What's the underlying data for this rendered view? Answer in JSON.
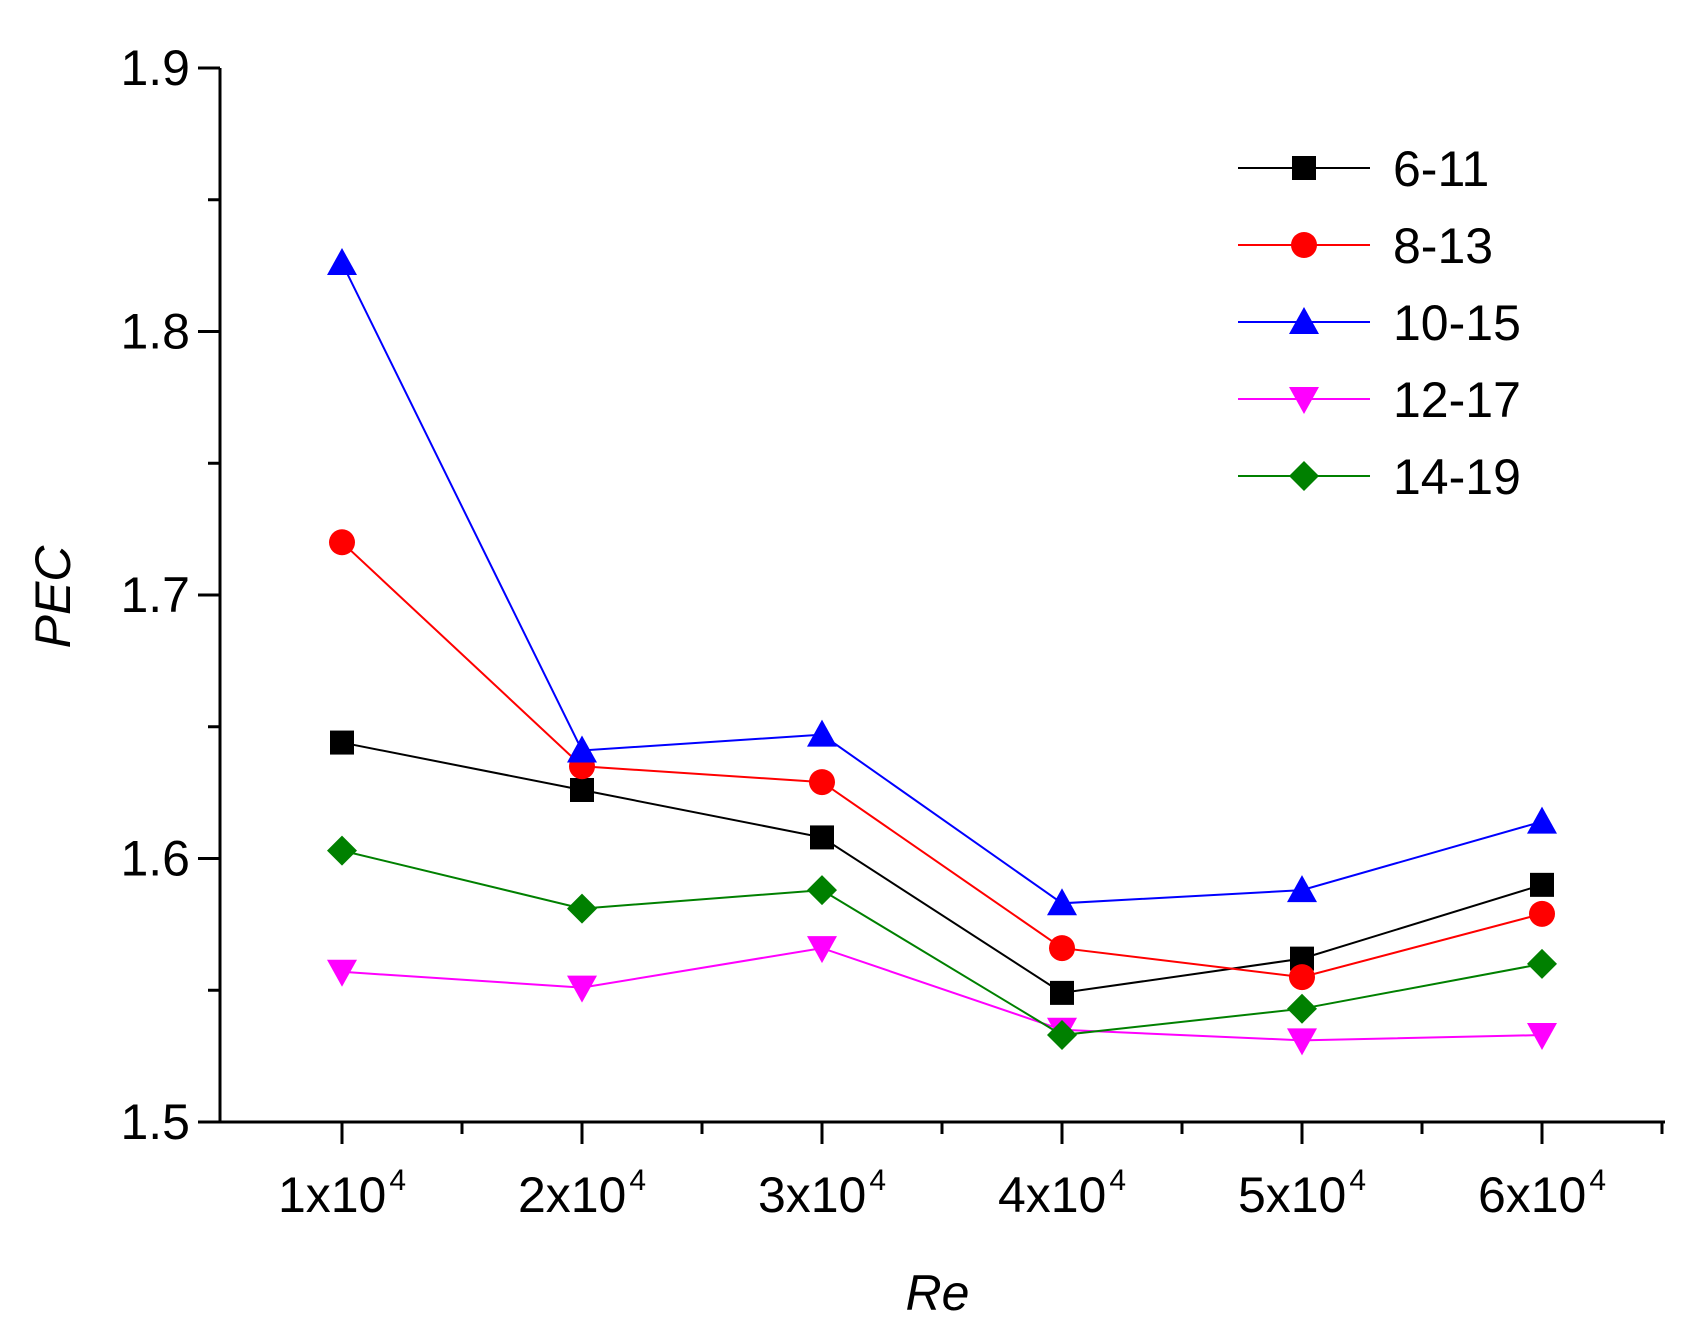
{
  "chart_data": {
    "type": "line",
    "title": "",
    "xlabel": "Re",
    "ylabel": "PEC",
    "x": [
      10000,
      20000,
      30000,
      40000,
      50000,
      60000
    ],
    "x_tick_labels": [
      {
        "base": "1x10",
        "exp": "4"
      },
      {
        "base": "2x10",
        "exp": "4"
      },
      {
        "base": "3x10",
        "exp": "4"
      },
      {
        "base": "4x10",
        "exp": "4"
      },
      {
        "base": "5x10",
        "exp": "4"
      },
      {
        "base": "6x10",
        "exp": "4"
      }
    ],
    "ylim": [
      1.5,
      1.9
    ],
    "y_ticks": [
      "1.5",
      "1.6",
      "1.7",
      "1.8",
      "1.9"
    ],
    "grid": false,
    "legend_position": "top-right",
    "series": [
      {
        "name": "6-11",
        "color": "#000000",
        "marker": "square",
        "values": [
          1.644,
          1.626,
          1.608,
          1.549,
          1.562,
          1.59
        ]
      },
      {
        "name": "8-13",
        "color": "#ff0000",
        "marker": "circle",
        "values": [
          1.72,
          1.635,
          1.629,
          1.566,
          1.555,
          1.579
        ]
      },
      {
        "name": "10-15",
        "color": "#0000ff",
        "marker": "triangle-up",
        "values": [
          1.826,
          1.641,
          1.647,
          1.583,
          1.588,
          1.614
        ]
      },
      {
        "name": "12-17",
        "color": "#ff00ff",
        "marker": "triangle-down",
        "values": [
          1.557,
          1.551,
          1.566,
          1.535,
          1.531,
          1.533
        ]
      },
      {
        "name": "14-19",
        "color": "#008000",
        "marker": "diamond",
        "values": [
          1.603,
          1.581,
          1.588,
          1.533,
          1.543,
          1.56
        ]
      }
    ]
  }
}
